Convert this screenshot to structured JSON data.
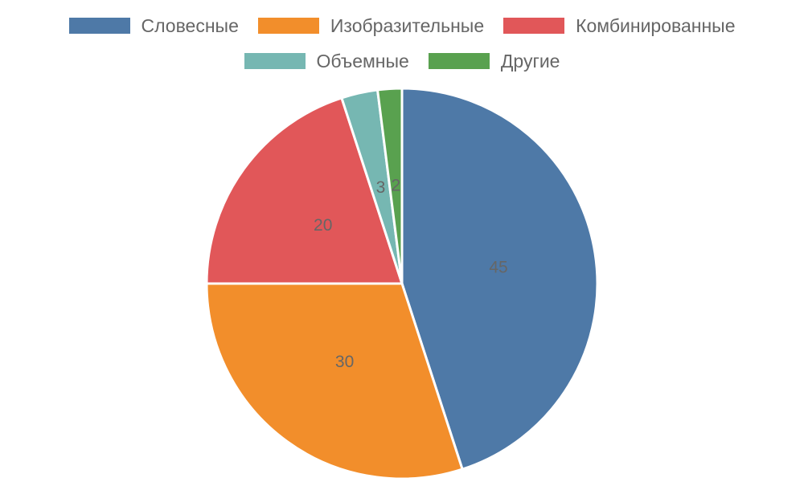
{
  "chart_data": {
    "type": "pie",
    "title": "",
    "categories": [
      "Словесные",
      "Изобразительные",
      "Комбинированные",
      "Объемные",
      "Другие"
    ],
    "values": [
      45,
      30,
      20,
      3,
      2
    ],
    "colors": [
      "#4e79a7",
      "#f28e2b",
      "#e15759",
      "#76b7b2",
      "#59a14f"
    ],
    "data_labels": [
      "45",
      "30",
      "20",
      "3",
      "2"
    ],
    "legend": {
      "placement": "top",
      "rows": [
        [
          0,
          1,
          2
        ],
        [
          3,
          4
        ]
      ]
    }
  }
}
